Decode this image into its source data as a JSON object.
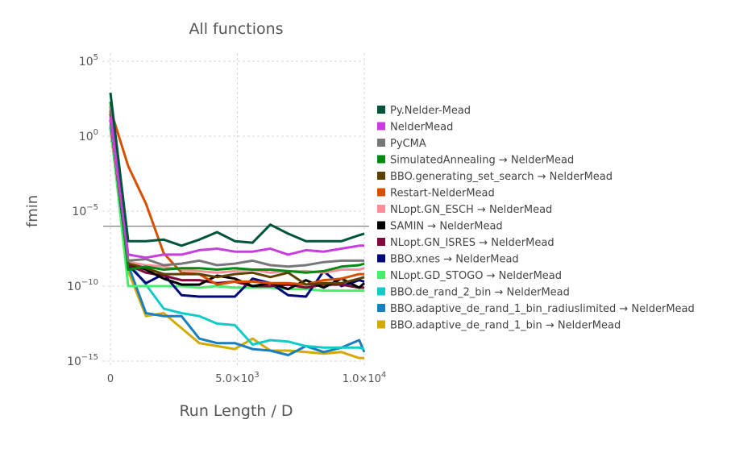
{
  "chart_data": {
    "type": "line",
    "title": "All functions",
    "xlabel": "Run Length / D",
    "ylabel": "fmin",
    "xlim": [
      0,
      10000
    ],
    "ylim_log10": [
      -15,
      5
    ],
    "yscale": "log",
    "x_ticks": [
      {
        "value": 0,
        "label": "0"
      },
      {
        "value": 5000,
        "label": "5.0×10",
        "exp": "3"
      },
      {
        "value": 10000,
        "label": "1.0×10",
        "exp": "4"
      }
    ],
    "y_ticks": [
      {
        "value": 5,
        "base": "10",
        "exp": "5"
      },
      {
        "value": 0,
        "base": "10",
        "exp": "0"
      },
      {
        "value": -5,
        "base": "10",
        "exp": "−5"
      },
      {
        "value": -10,
        "base": "10",
        "exp": "−10"
      },
      {
        "value": -15,
        "base": "10",
        "exp": "−15"
      }
    ],
    "grid": true,
    "legend_position": "right",
    "reference_line_log10": -6,
    "x": [
      0,
      700,
      1400,
      2100,
      2800,
      3500,
      4200,
      4900,
      5600,
      6300,
      7000,
      7700,
      8400,
      9100,
      9800,
      10000
    ],
    "series": [
      {
        "name": "Py.Nelder-Mead",
        "color": "#00543c",
        "values_log10": [
          2.9,
          -7.0,
          -7.0,
          -6.9,
          -7.3,
          -6.9,
          -6.4,
          -7.0,
          -7.1,
          -5.9,
          -6.5,
          -7.0,
          -7.0,
          -7.0,
          -6.6,
          -6.5
        ]
      },
      {
        "name": "NelderMead",
        "color": "#c83de0",
        "values_log10": [
          1.3,
          -7.9,
          -8.1,
          -7.9,
          -7.9,
          -7.6,
          -7.5,
          -7.7,
          -7.7,
          -7.5,
          -7.9,
          -7.6,
          -7.7,
          -7.5,
          -7.3,
          -7.3
        ]
      },
      {
        "name": "PyCMA",
        "color": "#777777",
        "values_log10": [
          2.0,
          -8.3,
          -8.2,
          -8.6,
          -8.5,
          -8.3,
          -8.6,
          -8.5,
          -8.3,
          -8.6,
          -8.7,
          -8.6,
          -8.4,
          -8.3,
          -8.3,
          -8.3
        ]
      },
      {
        "name": "SimulatedAnnealing → NelderMead",
        "color": "#048a12",
        "values_log10": [
          2.3,
          -8.9,
          -8.7,
          -8.9,
          -8.8,
          -8.8,
          -8.9,
          -8.8,
          -8.9,
          -8.9,
          -9.0,
          -9.1,
          -9.0,
          -8.7,
          -8.6,
          -8.5
        ]
      },
      {
        "name": "BBO.generating_set_search → NelderMead",
        "color": "#5b4200",
        "values_log10": [
          1.7,
          -8.5,
          -8.8,
          -9.2,
          -9.2,
          -9.2,
          -9.4,
          -9.2,
          -9.1,
          -9.4,
          -9.1,
          -9.9,
          -9.8,
          -9.8,
          -9.5,
          -9.4
        ]
      },
      {
        "name": "Restart-NelderMead",
        "color": "#d94f00",
        "values_log10": [
          1.8,
          -2.0,
          -4.5,
          -7.8,
          -9.1,
          -9.2,
          -9.9,
          -9.7,
          -9.7,
          -9.8,
          -9.8,
          -9.9,
          -9.6,
          -9.5,
          -9.2,
          -9.2
        ]
      },
      {
        "name": "NLopt.GN_ESCH → NelderMead",
        "color": "#f78e98",
        "values_log10": [
          1.2,
          -8.4,
          -8.6,
          -8.7,
          -8.9,
          -9.0,
          -9.1,
          -9.0,
          -8.9,
          -9.1,
          -9.0,
          -9.0,
          -9.1,
          -8.9,
          -8.9,
          -8.8
        ]
      },
      {
        "name": "SAMIN → NelderMead",
        "color": "#000000",
        "values_log10": [
          1.1,
          -8.5,
          -8.9,
          -9.5,
          -9.9,
          -9.9,
          -9.3,
          -9.5,
          -10.0,
          -9.8,
          -10.2,
          -9.6,
          -10.1,
          -9.5,
          -10.1,
          -9.8
        ]
      },
      {
        "name": "NLopt.GN_ISRES → NelderMead",
        "color": "#7e0a3b",
        "values_log10": [
          1.5,
          -8.6,
          -9.1,
          -9.3,
          -9.6,
          -9.6,
          -9.8,
          -9.7,
          -10.0,
          -10.0,
          -9.9,
          -10.1,
          -9.9,
          -9.9,
          -10.1,
          -10.1
        ]
      },
      {
        "name": "BBO.xnes → NelderMead",
        "color": "#00087a",
        "values_log10": [
          1.1,
          -8.6,
          -9.8,
          -9.2,
          -10.6,
          -10.7,
          -10.7,
          -10.7,
          -9.5,
          -9.8,
          -10.6,
          -10.7,
          -9.0,
          -10.0,
          -9.6,
          -9.7
        ]
      },
      {
        "name": "NLopt.GD_STOGO → NelderMead",
        "color": "#44ef6c",
        "values_log10": [
          0.8,
          -10.0,
          -10.0,
          -10.0,
          -10.0,
          -10.1,
          -10.0,
          -10.1,
          -10.1,
          -10.1,
          -10.2,
          -10.2,
          -10.3,
          -10.3,
          -10.3,
          -10.3
        ]
      },
      {
        "name": "BBO.de_rand_2_bin → NelderMead",
        "color": "#11cbc8",
        "values_log10": [
          0.7,
          -8.4,
          -9.9,
          -11.5,
          -11.8,
          -12.0,
          -12.5,
          -12.6,
          -13.9,
          -13.6,
          -13.7,
          -14.0,
          -14.1,
          -14.1,
          -14.1,
          -14.2
        ]
      },
      {
        "name": "BBO.adaptive_de_rand_1_bin_radiuslimited → NelderMead",
        "color": "#1a7fbf",
        "values_log10": [
          0.6,
          -8.6,
          -11.8,
          -12.0,
          -12.0,
          -13.5,
          -13.8,
          -13.8,
          -14.2,
          -14.3,
          -14.6,
          -14.0,
          -14.4,
          -14.1,
          -13.6,
          -14.4
        ]
      },
      {
        "name": "BBO.adaptive_de_rand_1_bin → NelderMead",
        "color": "#d3ab00",
        "values_log10": [
          0.5,
          -9.0,
          -12.0,
          -11.8,
          -12.8,
          -13.8,
          -14.0,
          -14.2,
          -13.5,
          -14.3,
          -14.3,
          -14.4,
          -14.5,
          -14.4,
          -14.8,
          -14.8
        ]
      }
    ]
  }
}
